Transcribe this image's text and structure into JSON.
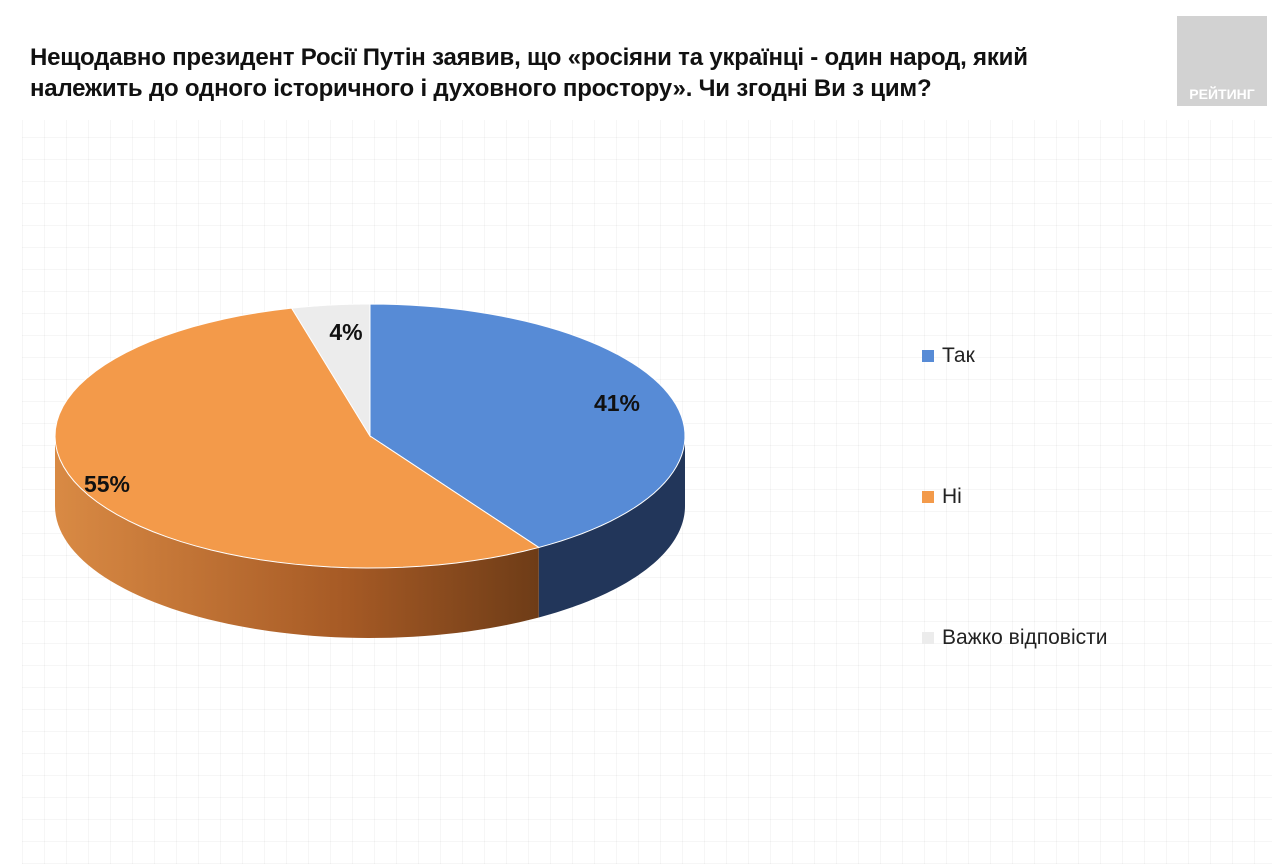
{
  "logo_text": "РЕЙТИНГ",
  "chart_data": {
    "type": "pie",
    "style": "3d",
    "title": "Нещодавно президент Росії Путін заявив, що «росіяни та українці - один народ, який належить до одного історичного і духовного простору». Чи згодні Ви з цим?",
    "categories": [
      "Так",
      "Ні",
      "Важко відповісти"
    ],
    "values": [
      41,
      55,
      4
    ],
    "data_labels": [
      "41%",
      "55%",
      "4%"
    ],
    "colors": [
      "#578bd6",
      "#f39a4a",
      "#ececec"
    ],
    "side_colors": [
      "#22365a",
      "#b8652a",
      "#bbbbbb"
    ],
    "legend_placement": "right"
  }
}
